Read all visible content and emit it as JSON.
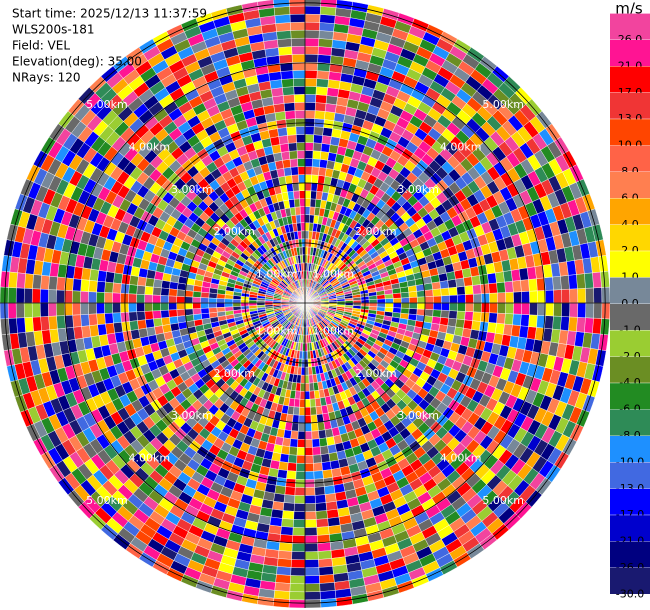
{
  "header": {
    "lines": [
      "Start time: 2025/12/13 11:37:59",
      "WLS200s-181",
      "Field: VEL",
      "Elevation(deg): 35.00",
      "NRays: 120"
    ]
  },
  "chart_data": {
    "type": "ppi",
    "n_rays": 120,
    "rlim": [
      0,
      5.08
    ],
    "range_rings": [
      {
        "value": 1,
        "label": "1.00km"
      },
      {
        "value": 2,
        "label": "2.00km"
      },
      {
        "value": 3,
        "label": "3.00km"
      },
      {
        "value": 4,
        "label": "4.00km"
      },
      {
        "value": 5,
        "label": "5.00km"
      }
    ],
    "colorbar": {
      "label": "m/s",
      "ticks": [
        {
          "value": 26,
          "label": "26.0"
        },
        {
          "value": 21,
          "label": "21.0"
        },
        {
          "value": 17,
          "label": "17.0"
        },
        {
          "value": 13,
          "label": "13.0"
        },
        {
          "value": 10,
          "label": "10.0"
        },
        {
          "value": 8,
          "label": "8.0"
        },
        {
          "value": 6,
          "label": "6.0"
        },
        {
          "value": 4,
          "label": "4.0"
        },
        {
          "value": 2,
          "label": "2.0"
        },
        {
          "value": 1,
          "label": "1.0"
        },
        {
          "value": 0,
          "label": "0.0"
        },
        {
          "value": -1,
          "label": "-1.0"
        },
        {
          "value": -2,
          "label": "-2.0"
        },
        {
          "value": -4,
          "label": "-4.0"
        },
        {
          "value": -6,
          "label": "-6.0"
        },
        {
          "value": -8,
          "label": "-8.0"
        },
        {
          "value": -10,
          "label": "-10.0"
        },
        {
          "value": -13,
          "label": "-13.0"
        },
        {
          "value": -17,
          "label": "-17.0"
        },
        {
          "value": -21,
          "label": "-21.0"
        },
        {
          "value": -26,
          "label": "-26.0"
        },
        {
          "value": -30,
          "label": "-30.0"
        }
      ],
      "colors": [
        "#f2449e",
        "#ff1493",
        "#ff0000",
        "#f03535",
        "#ff4500",
        "#ff6347",
        "#ff7f50",
        "#ffa500",
        "#ffd700",
        "#ffff00",
        "#778899",
        "#696969",
        "#9acd32",
        "#6b8e23",
        "#228b22",
        "#2e8b57",
        "#1e90ff",
        "#4169e1",
        "#0000ff",
        "#0000cd",
        "#000080",
        "#191970"
      ]
    }
  }
}
